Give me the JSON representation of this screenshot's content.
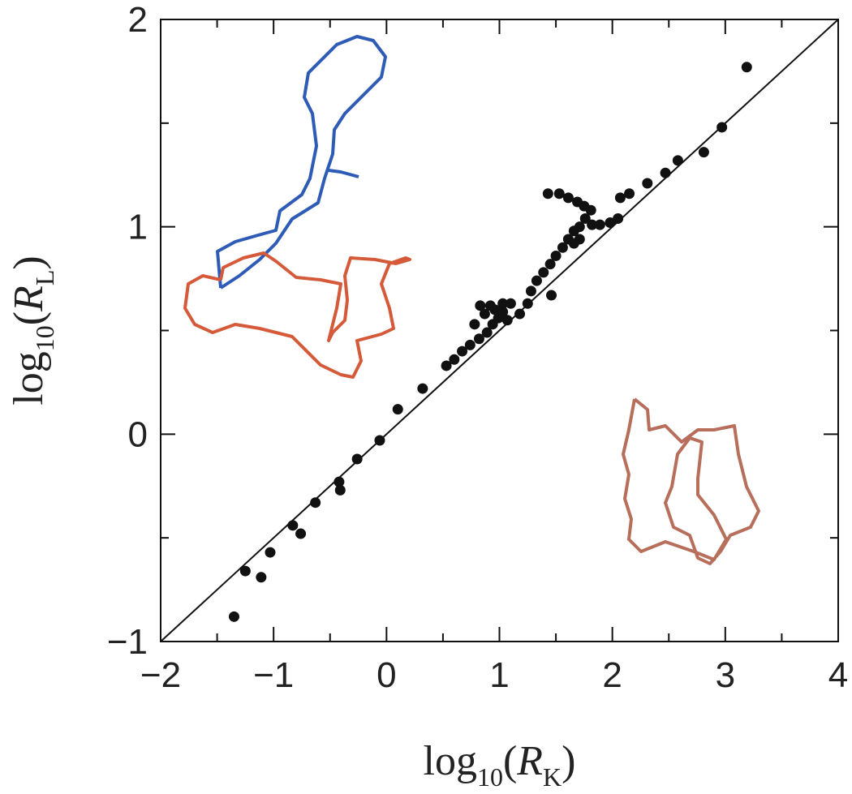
{
  "chart_data": {
    "type": "scatter",
    "x_label_parts": [
      "log",
      "10",
      "(",
      "R",
      "K",
      ")"
    ],
    "y_label_parts": [
      "log",
      "10",
      "(",
      "R",
      "L",
      ")"
    ],
    "x": [
      -1.35,
      -1.25,
      -1.11,
      -1.03,
      -0.83,
      -0.76,
      -0.63,
      -0.42,
      -0.41,
      -0.26,
      -0.06,
      0.1,
      0.32,
      0.53,
      0.6,
      0.67,
      0.74,
      0.82,
      0.89,
      0.94,
      0.99,
      1.03,
      0.83,
      0.92,
      1.03,
      1.1,
      1.07,
      1.18,
      1.25,
      1.28,
      1.33,
      1.39,
      1.46,
      1.45,
      1.5,
      1.56,
      1.61,
      1.66,
      1.71,
      1.76,
      1.82,
      1.89,
      1.98,
      2.05,
      2.07,
      2.15,
      1.43,
      1.53,
      1.61,
      1.69,
      1.75,
      1.81,
      1.71,
      1.66,
      2.31,
      2.47,
      2.58,
      2.81,
      2.97,
      3.19,
      0.96,
      0.87,
      0.78
    ],
    "values": [
      -0.88,
      -0.66,
      -0.69,
      -0.57,
      -0.44,
      -0.48,
      -0.33,
      -0.23,
      -0.27,
      -0.12,
      -0.03,
      0.12,
      0.22,
      0.33,
      0.36,
      0.4,
      0.43,
      0.46,
      0.49,
      0.53,
      0.56,
      0.59,
      0.62,
      0.62,
      0.63,
      0.63,
      0.55,
      0.58,
      0.63,
      0.69,
      0.74,
      0.78,
      0.67,
      0.82,
      0.86,
      0.9,
      0.94,
      0.98,
      1.0,
      1.04,
      1.01,
      1.01,
      1.02,
      1.04,
      1.14,
      1.16,
      1.16,
      1.16,
      1.14,
      1.12,
      1.1,
      1.08,
      0.94,
      0.92,
      1.21,
      1.26,
      1.32,
      1.36,
      1.48,
      1.77,
      0.6,
      0.58,
      0.53
    ],
    "color": "#111111",
    "reference_line": {
      "x": [
        -2,
        4
      ],
      "y": [
        -1,
        2
      ]
    },
    "xlim": [
      -2,
      4
    ],
    "ylim": [
      -1,
      2
    ],
    "xticks": [
      {
        "value": -2,
        "label": "−2"
      },
      {
        "value": -1,
        "label": "−1"
      },
      0,
      1,
      2,
      3,
      4
    ],
    "yticks": [
      {
        "value": -1,
        "label": "−1"
      },
      0,
      1,
      2
    ],
    "minor_xticks": [
      -1.5,
      -0.5,
      0.5,
      1.5,
      2.5,
      3.5
    ],
    "minor_yticks": [
      -0.5,
      0.5,
      1.5
    ],
    "grid": false
  }
}
